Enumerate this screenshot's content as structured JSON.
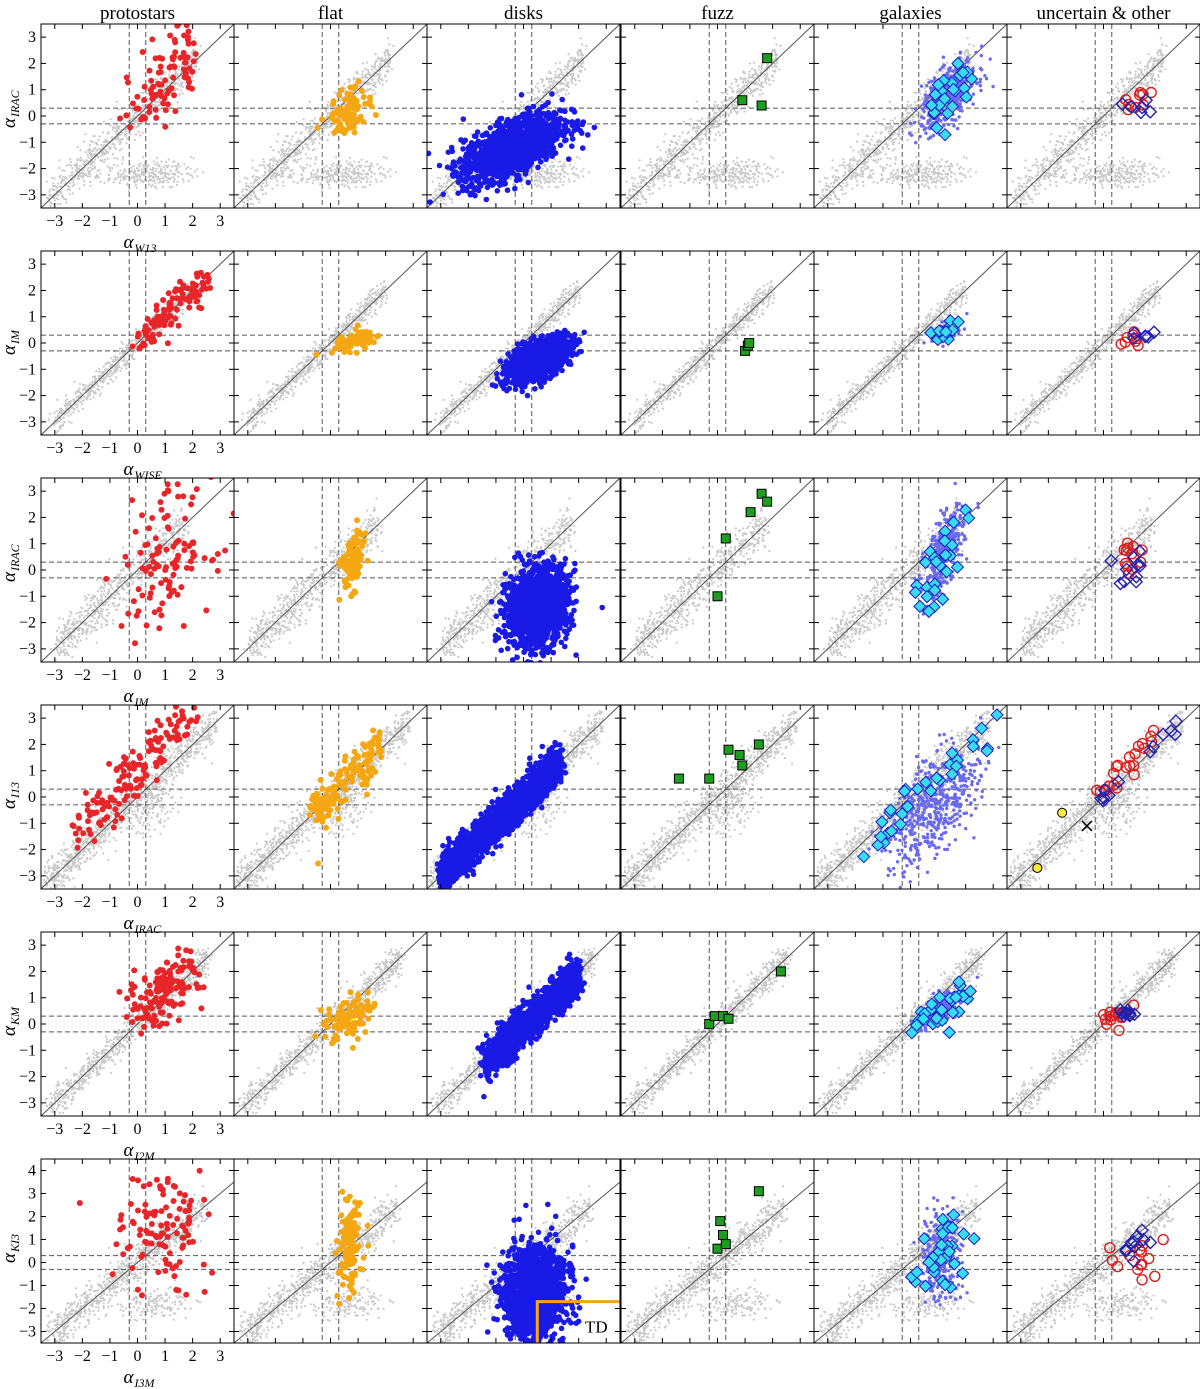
{
  "figure": {
    "columns": [
      "protostars",
      "flat",
      "disks",
      "fuzz",
      "galaxies",
      "uncertain & other"
    ],
    "tick_labels": [
      "−3",
      "−2",
      "−1",
      "0",
      "1",
      "2",
      "3"
    ],
    "tick_labels_row6": [
      "−3",
      "−2",
      "−1",
      "0",
      "1",
      "2",
      "3",
      "4"
    ],
    "annotation": "TD",
    "colors": {
      "background_points": "#c8c8c8",
      "protostars": "#e8262a",
      "flat": "#f5a712",
      "disks": "#1a1ae6",
      "fuzz": "#1e9e1e",
      "galaxies_fill": "#37dcf0",
      "galaxies_cloud": "#6a6af0",
      "uncertain": "#dd1c1c",
      "other": "#2222b0",
      "yellow": "#ffeb3b",
      "td_box": "#f5a712",
      "reference_line": "#555555",
      "dashed": "#555555"
    }
  },
  "chart_data": [
    {
      "type": "scatter",
      "row": 1,
      "xlabel": "α",
      "xlabel_sub": "W13",
      "ylabel": "α",
      "ylabel_sub": "IRAC",
      "xlim": [
        -3.5,
        3.5
      ],
      "ylim": [
        -3.5,
        3.5
      ],
      "ref_x": [
        -0.3,
        0.3
      ],
      "ref_y": [
        -0.3,
        0.3
      ],
      "pattern": "r1",
      "fuzz_points": [
        [
          0.9,
          0.6
        ],
        [
          1.6,
          0.4
        ],
        [
          1.8,
          2.2
        ]
      ]
    },
    {
      "type": "scatter",
      "row": 2,
      "xlabel": "α",
      "xlabel_sub": "WISE",
      "ylabel": "α",
      "ylabel_sub": "IM",
      "xlim": [
        -3.5,
        3.5
      ],
      "ylim": [
        -3.5,
        3.5
      ],
      "ref_x": [
        -0.3,
        0.3
      ],
      "ref_y": [
        -0.3,
        0.3
      ],
      "pattern": "r2",
      "fuzz_points": [
        [
          1.0,
          -0.3
        ],
        [
          1.1,
          -0.1
        ],
        [
          1.15,
          0.0
        ]
      ]
    },
    {
      "type": "scatter",
      "row": 3,
      "xlabel": "α",
      "xlabel_sub": "IM",
      "ylabel": "α",
      "ylabel_sub": "IRAC",
      "xlim": [
        -3.5,
        3.5
      ],
      "ylim": [
        -3.5,
        3.5
      ],
      "ref_x": [
        -0.3,
        0.3
      ],
      "ref_y": [
        -0.3,
        0.3
      ],
      "pattern": "r3",
      "fuzz_points": [
        [
          0.0,
          -1.0
        ],
        [
          0.3,
          1.2
        ],
        [
          1.2,
          2.2
        ],
        [
          1.6,
          2.9
        ],
        [
          1.8,
          2.6
        ]
      ]
    },
    {
      "type": "scatter",
      "row": 4,
      "xlabel": "α",
      "xlabel_sub": "IRAC",
      "ylabel": "α",
      "ylabel_sub": "I13",
      "xlim": [
        -3.5,
        3.5
      ],
      "ylim": [
        -3.5,
        3.5
      ],
      "ref_x": [
        -0.3,
        0.3
      ],
      "ref_y": [
        -0.3,
        0.3
      ],
      "pattern": "r4",
      "fuzz_points": [
        [
          -1.4,
          0.7
        ],
        [
          -0.3,
          0.7
        ],
        [
          0.4,
          1.8
        ],
        [
          0.8,
          1.6
        ],
        [
          0.9,
          1.2
        ],
        [
          1.5,
          2.0
        ]
      ]
    },
    {
      "type": "scatter",
      "row": 5,
      "xlabel": "α",
      "xlabel_sub": "I2M",
      "ylabel": "α",
      "ylabel_sub": "KM",
      "xlim": [
        -3.5,
        3.5
      ],
      "ylim": [
        -3.5,
        3.5
      ],
      "ref_x": [
        -0.3,
        0.3
      ],
      "ref_y": [
        -0.3,
        0.3
      ],
      "pattern": "r5",
      "fuzz_points": [
        [
          -0.3,
          0.0
        ],
        [
          -0.1,
          0.3
        ],
        [
          0.2,
          0.3
        ],
        [
          0.4,
          0.2
        ],
        [
          2.3,
          2.0
        ]
      ]
    },
    {
      "type": "scatter",
      "row": 6,
      "xlabel": "α",
      "xlabel_sub": "I3M",
      "ylabel": "α",
      "ylabel_sub": "KI3",
      "xlim": [
        -3.5,
        3.5
      ],
      "ylim": [
        -3.5,
        4.5
      ],
      "ref_x": [
        -0.3,
        0.3
      ],
      "ref_y": [
        -0.3,
        0.3
      ],
      "pattern": "r6",
      "fuzz_points": [
        [
          0.0,
          0.6
        ],
        [
          0.2,
          1.2
        ],
        [
          0.3,
          0.8
        ],
        [
          0.1,
          1.8
        ],
        [
          1.5,
          3.1
        ]
      ],
      "td_region": {
        "x_min": 0.5,
        "y_max": -1.7
      }
    }
  ]
}
